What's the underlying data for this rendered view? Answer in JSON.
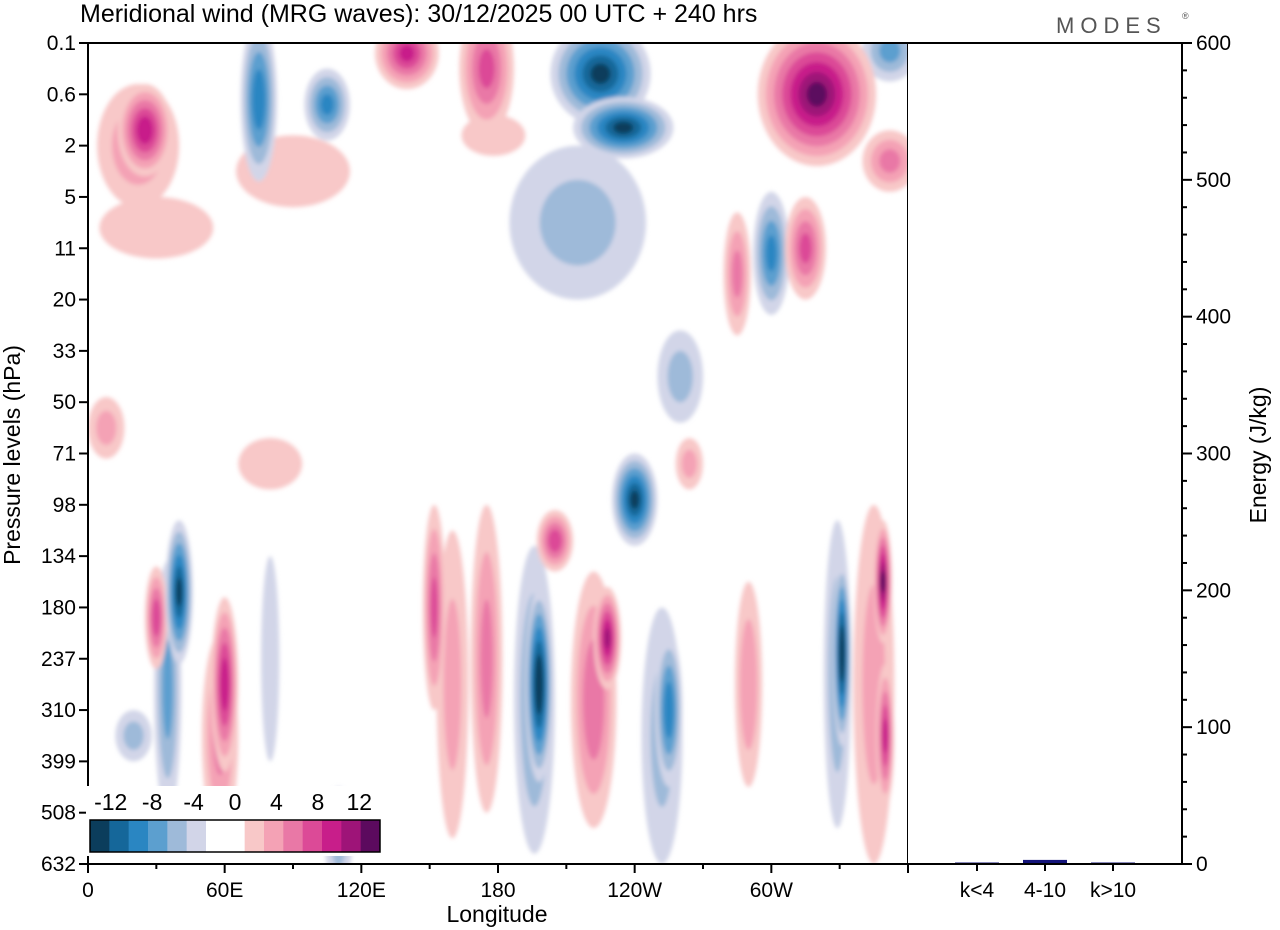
{
  "chart_data": [
    {
      "type": "heatmap",
      "title": "Meridional wind (MRG waves):  30/12/2025  00 UTC  + 240 hrs",
      "xlabel": "Longitude",
      "ylabel": "Pressure levels (hPa)",
      "x_ticks": [
        "0",
        "60E",
        "120E",
        "180",
        "120W",
        "60W"
      ],
      "x_tick_degrees": [
        0,
        60,
        120,
        180,
        240,
        300
      ],
      "x_range_degrees": [
        0,
        360
      ],
      "y_ticks": [
        "0.1",
        "0.6",
        "2",
        "5",
        "11",
        "20",
        "33",
        "50",
        "71",
        "98",
        "134",
        "180",
        "237",
        "310",
        "399",
        "508",
        "632"
      ],
      "colorbar": {
        "labels": [
          "-12",
          "-8",
          "-4",
          "0",
          "4",
          "8",
          "12"
        ],
        "colors": [
          "#0b3d5c",
          "#15679a",
          "#2a86c2",
          "#5c9fcf",
          "#9ebad9",
          "#d2d5e8",
          "#ffffff",
          "#ffffff",
          "#f8c8c8",
          "#f4a2b5",
          "#e978a6",
          "#dc4a97",
          "#c81e8a",
          "#9e1478",
          "#5c0a5e"
        ],
        "levels": [
          -14,
          -12,
          -10,
          -8,
          -6,
          -4,
          -2,
          0,
          2,
          4,
          6,
          8,
          10,
          12,
          14
        ]
      },
      "blobs": [
        {
          "lon": 25,
          "lev": 1.7,
          "w": 12,
          "h": 0.9,
          "v": 11
        },
        {
          "lon": 22,
          "lev": 2.0,
          "w": 18,
          "h": 1.2,
          "v": 5
        },
        {
          "lon": 75,
          "lev": 1.1,
          "w": 8,
          "h": 1.6,
          "v": -9
        },
        {
          "lon": 105,
          "lev": 1.2,
          "w": 10,
          "h": 0.7,
          "v": -8
        },
        {
          "lon": 140,
          "lev": 0.2,
          "w": 14,
          "h": 0.7,
          "v": 10
        },
        {
          "lon": 175,
          "lev": 0.5,
          "w": 12,
          "h": 1.3,
          "v": 8
        },
        {
          "lon": 225,
          "lev": 0.6,
          "w": 22,
          "h": 1.0,
          "v": -12
        },
        {
          "lon": 235,
          "lev": 1.65,
          "w": 22,
          "h": 0.6,
          "v": -12
        },
        {
          "lon": 215,
          "lev": 3.5,
          "w": 30,
          "h": 1.5,
          "v": -4
        },
        {
          "lon": 320,
          "lev": 1.0,
          "w": 26,
          "h": 1.4,
          "v": 14
        },
        {
          "lon": 352,
          "lev": 0.15,
          "w": 12,
          "h": 0.6,
          "v": -6
        },
        {
          "lon": 352,
          "lev": 2.3,
          "w": 12,
          "h": 0.6,
          "v": 6
        },
        {
          "lon": 300,
          "lev": 4.1,
          "w": 8,
          "h": 1.2,
          "v": -8
        },
        {
          "lon": 315,
          "lev": 4.0,
          "w": 9,
          "h": 1.0,
          "v": 8
        },
        {
          "lon": 285,
          "lev": 4.5,
          "w": 6,
          "h": 1.2,
          "v": 6
        },
        {
          "lon": 90,
          "lev": 2.5,
          "w": 25,
          "h": 0.7,
          "v": 3
        },
        {
          "lon": 30,
          "lev": 3.6,
          "w": 25,
          "h": 0.6,
          "v": 3
        },
        {
          "lon": 240,
          "lev": 8.9,
          "w": 10,
          "h": 0.9,
          "v": -12
        },
        {
          "lon": 205,
          "lev": 9.7,
          "w": 8,
          "h": 0.6,
          "v": 9
        },
        {
          "lon": 264,
          "lev": 8.2,
          "w": 6,
          "h": 0.5,
          "v": 4
        },
        {
          "lon": 40,
          "lev": 10.7,
          "w": 6,
          "h": 1.4,
          "v": -12
        },
        {
          "lon": 30,
          "lev": 11.2,
          "w": 5,
          "h": 1.0,
          "v": 9
        },
        {
          "lon": 35,
          "lev": 12.6,
          "w": 6,
          "h": 2.5,
          "v": -6
        },
        {
          "lon": 60,
          "lev": 12.5,
          "w": 6,
          "h": 1.7,
          "v": 11
        },
        {
          "lon": 58,
          "lev": 13.5,
          "w": 8,
          "h": 2.0,
          "v": 6
        },
        {
          "lon": 80,
          "lev": 12.0,
          "w": 4,
          "h": 2.0,
          "v": -3
        },
        {
          "lon": 152,
          "lev": 11.0,
          "w": 5,
          "h": 2.0,
          "v": 8
        },
        {
          "lon": 160,
          "lev": 12.5,
          "w": 7,
          "h": 3.0,
          "v": 4
        },
        {
          "lon": 175,
          "lev": 12.0,
          "w": 7,
          "h": 3.0,
          "v": 6
        },
        {
          "lon": 198,
          "lev": 12.5,
          "w": 6,
          "h": 1.9,
          "v": -14
        },
        {
          "lon": 196,
          "lev": 12.8,
          "w": 9,
          "h": 3.0,
          "v": -6
        },
        {
          "lon": 228,
          "lev": 11.6,
          "w": 6,
          "h": 1.0,
          "v": 12
        },
        {
          "lon": 222,
          "lev": 12.8,
          "w": 10,
          "h": 2.5,
          "v": 7
        },
        {
          "lon": 255,
          "lev": 13.0,
          "w": 6,
          "h": 1.5,
          "v": -9
        },
        {
          "lon": 252,
          "lev": 13.5,
          "w": 9,
          "h": 2.5,
          "v": -4
        },
        {
          "lon": 290,
          "lev": 12.5,
          "w": 6,
          "h": 2.0,
          "v": 5
        },
        {
          "lon": 331,
          "lev": 11.9,
          "w": 4,
          "h": 1.8,
          "v": -14
        },
        {
          "lon": 329,
          "lev": 12.3,
          "w": 6,
          "h": 3.0,
          "v": -5
        },
        {
          "lon": 349,
          "lev": 10.5,
          "w": 4,
          "h": 1.2,
          "v": 14
        },
        {
          "lon": 350,
          "lev": 13.5,
          "w": 4,
          "h": 1.4,
          "v": 10
        },
        {
          "lon": 345,
          "lev": 12.5,
          "w": 9,
          "h": 3.5,
          "v": 4
        },
        {
          "lon": 20,
          "lev": 13.5,
          "w": 8,
          "h": 0.5,
          "v": -4
        },
        {
          "lon": 110,
          "lev": 15.5,
          "w": 6,
          "h": 1.0,
          "v": -4
        },
        {
          "lon": 8,
          "lev": 7.5,
          "w": 8,
          "h": 0.6,
          "v": 4
        },
        {
          "lon": 80,
          "lev": 8.2,
          "w": 14,
          "h": 0.5,
          "v": 3
        },
        {
          "lon": 260,
          "lev": 6.5,
          "w": 10,
          "h": 0.9,
          "v": -4
        },
        {
          "lon": 178,
          "lev": 1.8,
          "w": 14,
          "h": 0.4,
          "v": 3
        }
      ]
    },
    {
      "type": "bar",
      "ylabel": "Energy (J/kg)",
      "categories": [
        "k<4",
        "4-10",
        "k>10"
      ],
      "values": [
        0.5,
        3,
        0.5
      ],
      "y_ticks": [
        "0",
        "100",
        "200",
        "300",
        "400",
        "500",
        "600"
      ],
      "ylim": [
        0,
        600
      ],
      "bar_color": "#14147a"
    }
  ],
  "branding": {
    "logo": "MODES",
    "mark": "®"
  }
}
